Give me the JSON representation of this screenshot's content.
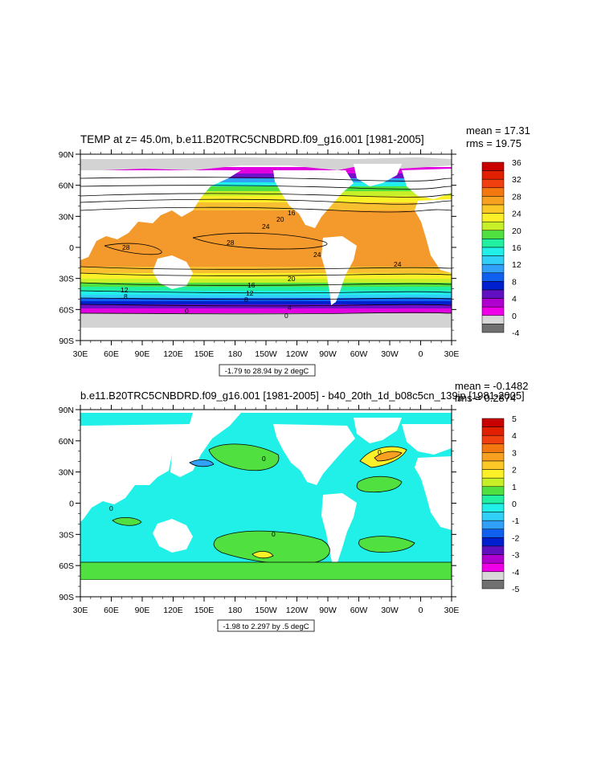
{
  "panels": [
    {
      "title": "TEMP at z=  45.0m, b.e11.B20TRC5CNBDRD.f09_g16.001 [1981-2005]",
      "mean": "mean = 17.31",
      "rms": "rms = 19.75",
      "range_label": "-1.79 to 28.94 by 2 degC",
      "contour_labels": [
        "28",
        "28",
        "24",
        "24",
        "20",
        "16",
        "24",
        "20",
        "16",
        "12",
        "8",
        "12",
        "8",
        "4",
        "0",
        "0"
      ],
      "colorbar": {
        "labels": [
          "36",
          "32",
          "28",
          "24",
          "20",
          "16",
          "12",
          "8",
          "4",
          "0",
          "-4"
        ],
        "colors": [
          "#c80000",
          "#e02000",
          "#f04010",
          "#f47810",
          "#f8a020",
          "#fcc828",
          "#fcf028",
          "#c8f028",
          "#50e040",
          "#20f0a0",
          "#20f0e8",
          "#30d0f8",
          "#30a0f8",
          "#1060f0",
          "#0020d0",
          "#6010c0",
          "#b000d0",
          "#f000e8",
          "#d8d8d8",
          "#707070"
        ]
      }
    },
    {
      "title": "b.e11.B20TRC5CNBDRD.f09_g16.001 [1981-2005] - b40_20th_1d_b08c5cn_139jp [1981-2005]",
      "mean": "mean = -0.1482",
      "rms": "rms = 0.2874",
      "range_label": "-1.98 to 2.297 by .5 degC",
      "contour_labels": [
        "0",
        "0",
        "0",
        "0"
      ],
      "colorbar": {
        "labels": [
          "5",
          "4",
          "3",
          "2",
          "1",
          "0",
          "-1",
          "-2",
          "-3",
          "-4",
          "-5"
        ],
        "colors": [
          "#c80000",
          "#e02000",
          "#f04010",
          "#f47810",
          "#f8a020",
          "#fcc828",
          "#fcf028",
          "#c8f028",
          "#50e040",
          "#20f0a0",
          "#20f0e8",
          "#30d0f8",
          "#30a0f8",
          "#1060f0",
          "#0020d0",
          "#6010c0",
          "#b000d0",
          "#f000e8",
          "#d8d8d8",
          "#707070"
        ]
      }
    }
  ],
  "lat_labels": [
    "90N",
    "60N",
    "30N",
    "0",
    "30S",
    "60S",
    "90S"
  ],
  "lon_labels": [
    "30E",
    "60E",
    "90E",
    "120E",
    "150E",
    "180",
    "150W",
    "120W",
    "90W",
    "60W",
    "30W",
    "0",
    "30E"
  ]
}
